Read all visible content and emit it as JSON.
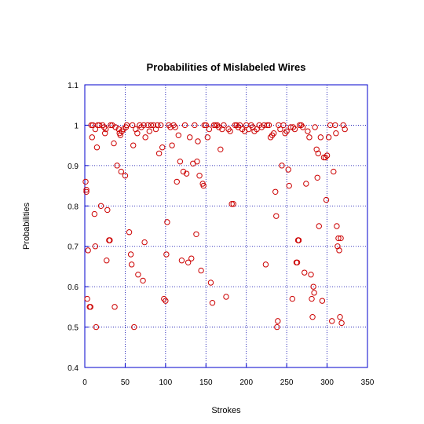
{
  "chart_data": {
    "type": "scatter",
    "title": "Probabilities of Mislabeled Wires",
    "xlabel": "Strokes",
    "ylabel": "Probabilities",
    "xlim": [
      0,
      350
    ],
    "ylim": [
      0.4,
      1.1
    ],
    "xticks": [
      0,
      50,
      100,
      150,
      200,
      250,
      300,
      350
    ],
    "yticks": [
      0.4,
      0.5,
      0.6,
      0.7,
      0.8,
      0.9,
      1,
      1.1
    ],
    "grid": true,
    "marker_color": "#cc0000",
    "frame_color": "#0000cc",
    "points": [
      [
        1,
        0.86
      ],
      [
        2,
        0.84
      ],
      [
        2,
        0.835
      ],
      [
        3,
        0.57
      ],
      [
        4,
        0.69
      ],
      [
        6,
        0.55
      ],
      [
        7,
        0.55
      ],
      [
        8,
        1.0
      ],
      [
        9,
        0.97
      ],
      [
        10,
        1.0
      ],
      [
        12,
        0.78
      ],
      [
        13,
        0.99
      ],
      [
        13,
        0.7
      ],
      [
        14,
        0.5
      ],
      [
        15,
        0.945
      ],
      [
        16,
        1.0
      ],
      [
        18,
        1.0
      ],
      [
        20,
        0.8
      ],
      [
        22,
        1.0
      ],
      [
        24,
        0.995
      ],
      [
        25,
        0.98
      ],
      [
        26,
        0.99
      ],
      [
        27,
        0.665
      ],
      [
        28,
        0.79
      ],
      [
        30,
        0.715
      ],
      [
        31,
        0.715
      ],
      [
        32,
        1.0
      ],
      [
        34,
        1.0
      ],
      [
        36,
        0.955
      ],
      [
        37,
        0.55
      ],
      [
        38,
        0.995
      ],
      [
        40,
        0.9
      ],
      [
        42,
        0.99
      ],
      [
        43,
        0.98
      ],
      [
        44,
        0.975
      ],
      [
        45,
        0.885
      ],
      [
        46,
        0.985
      ],
      [
        48,
        0.99
      ],
      [
        50,
        0.875
      ],
      [
        51,
        0.995
      ],
      [
        52,
        1.0
      ],
      [
        55,
        0.735
      ],
      [
        57,
        0.68
      ],
      [
        58,
        0.655
      ],
      [
        59,
        1.0
      ],
      [
        60,
        0.95
      ],
      [
        61,
        0.5
      ],
      [
        63,
        0.99
      ],
      [
        65,
        0.98
      ],
      [
        66,
        0.63
      ],
      [
        68,
        1.0
      ],
      [
        70,
        0.995
      ],
      [
        72,
        0.615
      ],
      [
        73,
        1.0
      ],
      [
        74,
        0.71
      ],
      [
        75,
        0.97
      ],
      [
        78,
        1.0
      ],
      [
        80,
        0.985
      ],
      [
        82,
        1.0
      ],
      [
        85,
        1.0
      ],
      [
        88,
        0.99
      ],
      [
        90,
        1.0
      ],
      [
        92,
        0.93
      ],
      [
        94,
        1.0
      ],
      [
        96,
        0.945
      ],
      [
        98,
        0.57
      ],
      [
        100,
        0.565
      ],
      [
        101,
        0.68
      ],
      [
        102,
        0.76
      ],
      [
        104,
        1.0
      ],
      [
        106,
        0.995
      ],
      [
        108,
        0.95
      ],
      [
        110,
        1.0
      ],
      [
        112,
        0.995
      ],
      [
        114,
        0.86
      ],
      [
        116,
        0.975
      ],
      [
        118,
        0.91
      ],
      [
        120,
        0.665
      ],
      [
        122,
        0.885
      ],
      [
        124,
        1.0
      ],
      [
        126,
        0.88
      ],
      [
        128,
        0.66
      ],
      [
        130,
        0.97
      ],
      [
        132,
        0.67
      ],
      [
        134,
        0.905
      ],
      [
        136,
        1.0
      ],
      [
        138,
        0.73
      ],
      [
        139,
        0.91
      ],
      [
        140,
        0.96
      ],
      [
        142,
        0.875
      ],
      [
        144,
        0.64
      ],
      [
        146,
        0.855
      ],
      [
        147,
        0.85
      ],
      [
        148,
        1.0
      ],
      [
        150,
        1.0
      ],
      [
        152,
        0.97
      ],
      [
        154,
        0.99
      ],
      [
        156,
        0.61
      ],
      [
        158,
        0.56
      ],
      [
        160,
        1.0
      ],
      [
        162,
        1.0
      ],
      [
        164,
        1.0
      ],
      [
        166,
        0.995
      ],
      [
        168,
        0.94
      ],
      [
        170,
        0.99
      ],
      [
        172,
        1.0
      ],
      [
        175,
        0.575
      ],
      [
        178,
        0.99
      ],
      [
        180,
        0.985
      ],
      [
        182,
        0.805
      ],
      [
        184,
        0.805
      ],
      [
        186,
        1.0
      ],
      [
        188,
        1.0
      ],
      [
        190,
        0.995
      ],
      [
        192,
        1.0
      ],
      [
        195,
        0.99
      ],
      [
        198,
        0.985
      ],
      [
        200,
        1.0
      ],
      [
        203,
        0.99
      ],
      [
        206,
        1.0
      ],
      [
        208,
        0.995
      ],
      [
        210,
        0.985
      ],
      [
        213,
        0.99
      ],
      [
        216,
        1.0
      ],
      [
        219,
        0.995
      ],
      [
        222,
        1.0
      ],
      [
        224,
        0.655
      ],
      [
        226,
        1.0
      ],
      [
        228,
        1.0
      ],
      [
        230,
        0.97
      ],
      [
        232,
        0.975
      ],
      [
        234,
        0.98
      ],
      [
        236,
        0.835
      ],
      [
        237,
        0.775
      ],
      [
        238,
        0.5
      ],
      [
        239,
        0.515
      ],
      [
        240,
        1.0
      ],
      [
        242,
        0.99
      ],
      [
        244,
        0.9
      ],
      [
        246,
        1.0
      ],
      [
        248,
        0.98
      ],
      [
        250,
        0.985
      ],
      [
        252,
        0.89
      ],
      [
        253,
        0.85
      ],
      [
        255,
        0.995
      ],
      [
        257,
        0.57
      ],
      [
        258,
        0.995
      ],
      [
        260,
        0.99
      ],
      [
        262,
        0.66
      ],
      [
        263,
        0.66
      ],
      [
        264,
        0.715
      ],
      [
        265,
        0.715
      ],
      [
        266,
        1.0
      ],
      [
        268,
        1.0
      ],
      [
        270,
        0.995
      ],
      [
        272,
        0.635
      ],
      [
        274,
        0.855
      ],
      [
        276,
        0.985
      ],
      [
        278,
        0.97
      ],
      [
        280,
        0.63
      ],
      [
        281,
        0.57
      ],
      [
        282,
        0.525
      ],
      [
        283,
        0.6
      ],
      [
        284,
        0.585
      ],
      [
        285,
        0.995
      ],
      [
        287,
        0.94
      ],
      [
        288,
        0.87
      ],
      [
        289,
        0.93
      ],
      [
        290,
        0.75
      ],
      [
        292,
        0.97
      ],
      [
        294,
        0.565
      ],
      [
        296,
        0.92
      ],
      [
        298,
        0.92
      ],
      [
        299,
        0.815
      ],
      [
        300,
        0.925
      ],
      [
        302,
        0.97
      ],
      [
        304,
        1.0
      ],
      [
        306,
        0.515
      ],
      [
        308,
        0.885
      ],
      [
        310,
        1.0
      ],
      [
        311,
        0.98
      ],
      [
        312,
        0.75
      ],
      [
        313,
        0.7
      ],
      [
        314,
        0.72
      ],
      [
        315,
        0.69
      ],
      [
        316,
        0.525
      ],
      [
        317,
        0.72
      ],
      [
        318,
        0.51
      ],
      [
        320,
        1.0
      ],
      [
        322,
        0.99
      ]
    ]
  }
}
